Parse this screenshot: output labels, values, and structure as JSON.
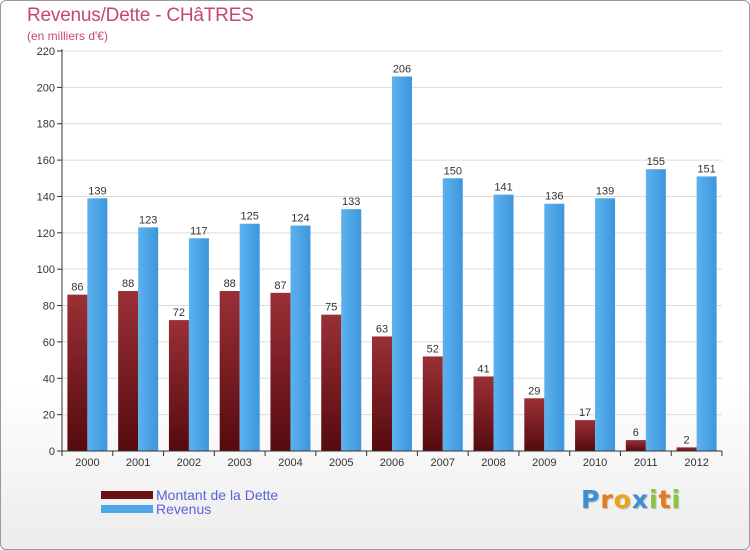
{
  "chart_data": {
    "type": "bar",
    "title": "Revenus/Dette - CHâTRES",
    "subtitle": "(en milliers d'€)",
    "xlabel": "",
    "ylabel": "",
    "ylim": [
      0,
      220
    ],
    "yticks": [
      0,
      20,
      40,
      60,
      80,
      100,
      120,
      140,
      160,
      180,
      200,
      220
    ],
    "grid": true,
    "legend_position": "bottom-left",
    "categories": [
      "2000",
      "2001",
      "2002",
      "2003",
      "2004",
      "2005",
      "2006",
      "2007",
      "2008",
      "2009",
      "2010",
      "2011",
      "2012"
    ],
    "series": [
      {
        "name": "Montant de la Dette",
        "color": "#7a1a1e",
        "values": [
          86,
          88,
          72,
          88,
          87,
          75,
          63,
          52,
          41,
          29,
          17,
          6,
          2
        ]
      },
      {
        "name": "Revenus",
        "color": "#4ea6e8",
        "values": [
          139,
          123,
          117,
          125,
          124,
          133,
          206,
          150,
          141,
          136,
          139,
          155,
          151
        ]
      }
    ]
  },
  "legend": {
    "items": [
      {
        "label": "Montant de la Dette",
        "color": "#6b0f14"
      },
      {
        "label": "Revenus",
        "color": "#4ea6e8"
      }
    ]
  },
  "logo": {
    "letters": [
      {
        "char": "P",
        "color": "#3b8fd6"
      },
      {
        "char": "r",
        "color": "#e37b1c"
      },
      {
        "char": "o",
        "color": "#f0a21a"
      },
      {
        "char": "x",
        "color": "#3b8fd6"
      },
      {
        "char": "i",
        "color": "#8bc43f"
      },
      {
        "char": "t",
        "color": "#e37b1c"
      },
      {
        "char": "i",
        "color": "#8bc43f"
      }
    ]
  }
}
